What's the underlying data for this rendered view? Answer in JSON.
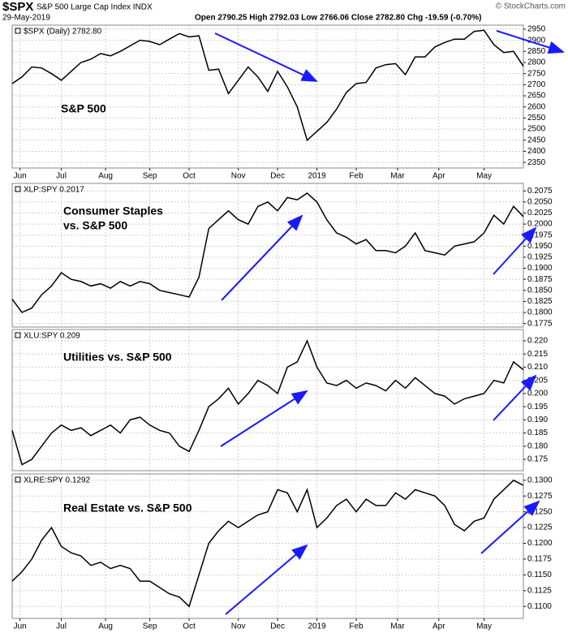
{
  "header": {
    "symbol": "$SPX",
    "name": "S&P 500 Large Cap Index INDX",
    "date": "29-May-2019",
    "quote": "Open 2790.25  High 2792.03  Low 2766.06  Close 2782.80  Chg -19.59 (-0.70%)",
    "source": "© StockCharts.com"
  },
  "chart_data": [
    {
      "type": "line",
      "annotation": [
        "S&P 500"
      ],
      "x": [
        0,
        1,
        2,
        3,
        4,
        5,
        6,
        7,
        8,
        9,
        10,
        11,
        12,
        13,
        14,
        15,
        16,
        17,
        18,
        19,
        20,
        21,
        22,
        23,
        24,
        25,
        26,
        27,
        28,
        29,
        30,
        31,
        32,
        33,
        34,
        35,
        36,
        37,
        38,
        39,
        40,
        41,
        42,
        43,
        44,
        45,
        46,
        47,
        48,
        49,
        50,
        51,
        52
      ],
      "series": [
        {
          "name": "$SPX (Daily) 2782.80",
          "color": "#000000",
          "values": [
            2705,
            2735,
            2780,
            2775,
            2750,
            2720,
            2760,
            2800,
            2815,
            2840,
            2830,
            2850,
            2875,
            2900,
            2895,
            2880,
            2905,
            2930,
            2915,
            2920,
            2765,
            2770,
            2660,
            2720,
            2780,
            2735,
            2670,
            2760,
            2690,
            2600,
            2450,
            2490,
            2530,
            2590,
            2665,
            2705,
            2710,
            2775,
            2790,
            2795,
            2745,
            2825,
            2825,
            2870,
            2890,
            2905,
            2905,
            2940,
            2945,
            2880,
            2845,
            2850,
            2783
          ]
        }
      ],
      "xlim": [
        0,
        52
      ],
      "xticks": [
        {
          "value": 0.8,
          "label": "Jun"
        },
        {
          "value": 5,
          "label": "Jul"
        },
        {
          "value": 9.5,
          "label": "Aug"
        },
        {
          "value": 14,
          "label": "Sep"
        },
        {
          "value": 18,
          "label": "Oct"
        },
        {
          "value": 23,
          "label": "Nov"
        },
        {
          "value": 27,
          "label": "Dec"
        },
        {
          "value": 31,
          "label": "2019"
        },
        {
          "value": 35,
          "label": "Feb"
        },
        {
          "value": 39.2,
          "label": "Mar"
        },
        {
          "value": 43.4,
          "label": "Apr"
        },
        {
          "value": 48,
          "label": "May"
        }
      ],
      "ylim": [
        2325,
        2968
      ],
      "yticks": [
        2350,
        2400,
        2450,
        2500,
        2550,
        2600,
        2650,
        2700,
        2750,
        2800,
        2850,
        2900,
        2950
      ],
      "grid": true
    },
    {
      "type": "line",
      "annotation": [
        "Consumer Staples",
        "vs. S&P 500"
      ],
      "x": [
        0,
        1,
        2,
        3,
        4,
        5,
        6,
        7,
        8,
        9,
        10,
        11,
        12,
        13,
        14,
        15,
        16,
        17,
        18,
        19,
        20,
        21,
        22,
        23,
        24,
        25,
        26,
        27,
        28,
        29,
        30,
        31,
        32,
        33,
        34,
        35,
        36,
        37,
        38,
        39,
        40,
        41,
        42,
        43,
        44,
        45,
        46,
        47,
        48,
        49,
        50,
        51,
        52
      ],
      "series": [
        {
          "name": "XLP:SPY 0.2017",
          "color": "#000000",
          "values": [
            0.183,
            0.18,
            0.181,
            0.184,
            0.186,
            0.189,
            0.1875,
            0.187,
            0.186,
            0.1865,
            0.1855,
            0.187,
            0.186,
            0.187,
            0.1865,
            0.185,
            0.1845,
            0.184,
            0.1835,
            0.188,
            0.199,
            0.201,
            0.203,
            0.201,
            0.2,
            0.204,
            0.205,
            0.203,
            0.206,
            0.2055,
            0.207,
            0.205,
            0.201,
            0.198,
            0.197,
            0.1955,
            0.1965,
            0.194,
            0.194,
            0.1935,
            0.195,
            0.198,
            0.194,
            0.1935,
            0.193,
            0.195,
            0.1955,
            0.196,
            0.198,
            0.202,
            0.2,
            0.204,
            0.2017
          ]
        }
      ],
      "xlim": [
        0,
        52
      ],
      "ylim": [
        0.1767,
        0.2092
      ],
      "yticks": [
        0.1775,
        {
          "value": 0.18,
          "label": "0.1800"
        },
        0.1825,
        {
          "value": 0.185,
          "label": "0.1850"
        },
        0.1875,
        {
          "value": 0.19,
          "label": "0.1900"
        },
        0.1925,
        {
          "value": 0.195,
          "label": "0.1950"
        },
        0.1975,
        {
          "value": 0.2,
          "label": "0.2000"
        },
        0.2025,
        {
          "value": 0.205,
          "label": "0.2050"
        },
        0.2075
      ],
      "grid": true
    },
    {
      "type": "line",
      "annotation": [
        "Utilities vs. S&P 500"
      ],
      "x": [
        0,
        1,
        2,
        3,
        4,
        5,
        6,
        7,
        8,
        9,
        10,
        11,
        12,
        13,
        14,
        15,
        16,
        17,
        18,
        19,
        20,
        21,
        22,
        23,
        24,
        25,
        26,
        27,
        28,
        29,
        30,
        31,
        32,
        33,
        34,
        35,
        36,
        37,
        38,
        39,
        40,
        41,
        42,
        43,
        44,
        45,
        46,
        47,
        48,
        49,
        50,
        51,
        52
      ],
      "series": [
        {
          "name": "XLU:SPY 0.209",
          "color": "#000000",
          "values": [
            0.186,
            0.173,
            0.175,
            0.18,
            0.185,
            0.188,
            0.186,
            0.187,
            0.184,
            0.186,
            0.188,
            0.185,
            0.19,
            0.191,
            0.188,
            0.186,
            0.185,
            0.18,
            0.178,
            0.186,
            0.195,
            0.198,
            0.202,
            0.196,
            0.2,
            0.205,
            0.203,
            0.2,
            0.21,
            0.212,
            0.22,
            0.21,
            0.204,
            0.203,
            0.205,
            0.202,
            0.204,
            0.203,
            0.201,
            0.205,
            0.202,
            0.206,
            0.203,
            0.2,
            0.199,
            0.196,
            0.198,
            0.199,
            0.2,
            0.205,
            0.204,
            0.212,
            0.209
          ]
        }
      ],
      "xlim": [
        0,
        52
      ],
      "ylim": [
        0.1707,
        0.2243
      ],
      "yticks": [
        0.175,
        {
          "value": 0.18,
          "label": "0.180"
        },
        0.185,
        {
          "value": 0.19,
          "label": "0.190"
        },
        0.195,
        {
          "value": 0.2,
          "label": "0.200"
        },
        0.205,
        {
          "value": 0.21,
          "label": "0.210"
        },
        0.215,
        {
          "value": 0.22,
          "label": "0.220"
        }
      ],
      "grid": true
    },
    {
      "type": "line",
      "annotation": [
        "Real Estate vs. S&P 500"
      ],
      "x": [
        0,
        1,
        2,
        3,
        4,
        5,
        6,
        7,
        8,
        9,
        10,
        11,
        12,
        13,
        14,
        15,
        16,
        17,
        18,
        19,
        20,
        21,
        22,
        23,
        24,
        25,
        26,
        27,
        28,
        29,
        30,
        31,
        32,
        33,
        34,
        35,
        36,
        37,
        38,
        39,
        40,
        41,
        42,
        43,
        44,
        45,
        46,
        47,
        48,
        49,
        50,
        51,
        52
      ],
      "series": [
        {
          "name": "XLRE:SPY 0.1292",
          "color": "#000000",
          "values": [
            0.114,
            0.1155,
            0.1175,
            0.1205,
            0.1225,
            0.1195,
            0.1185,
            0.118,
            0.1165,
            0.117,
            0.116,
            0.1165,
            0.116,
            0.114,
            0.114,
            0.113,
            0.112,
            0.1115,
            0.11,
            0.115,
            0.12,
            0.122,
            0.1235,
            0.1225,
            0.1235,
            0.1245,
            0.125,
            0.1285,
            0.128,
            0.125,
            0.1285,
            0.1225,
            0.124,
            0.126,
            0.127,
            0.125,
            0.127,
            0.126,
            0.126,
            0.128,
            0.127,
            0.1285,
            0.128,
            0.1275,
            0.126,
            0.123,
            0.122,
            0.1235,
            0.124,
            0.127,
            0.1285,
            0.13,
            0.1292
          ]
        }
      ],
      "xlim": [
        0,
        52
      ],
      "xticks": [
        {
          "value": 0.8,
          "label": "Jun"
        },
        {
          "value": 5,
          "label": "Jul"
        },
        {
          "value": 9.5,
          "label": "Aug"
        },
        {
          "value": 14,
          "label": "Sep"
        },
        {
          "value": 18,
          "label": "Oct"
        },
        {
          "value": 23,
          "label": "Nov"
        },
        {
          "value": 27,
          "label": "Dec"
        },
        {
          "value": 31,
          "label": "2019"
        },
        {
          "value": 35,
          "label": "Feb"
        },
        {
          "value": 39.2,
          "label": "Mar"
        },
        {
          "value": 43.4,
          "label": "Apr"
        },
        {
          "value": 48,
          "label": "May"
        }
      ],
      "ylim": [
        0.1081,
        0.131
      ],
      "yticks": [
        {
          "value": 0.11,
          "label": "0.1100"
        },
        0.1125,
        {
          "value": 0.115,
          "label": "0.1150"
        },
        0.1175,
        {
          "value": 0.12,
          "label": "0.1200"
        },
        0.1225,
        {
          "value": 0.125,
          "label": "0.1250"
        },
        0.1275,
        {
          "value": 0.13,
          "label": "0.1300"
        }
      ],
      "grid": true
    }
  ]
}
